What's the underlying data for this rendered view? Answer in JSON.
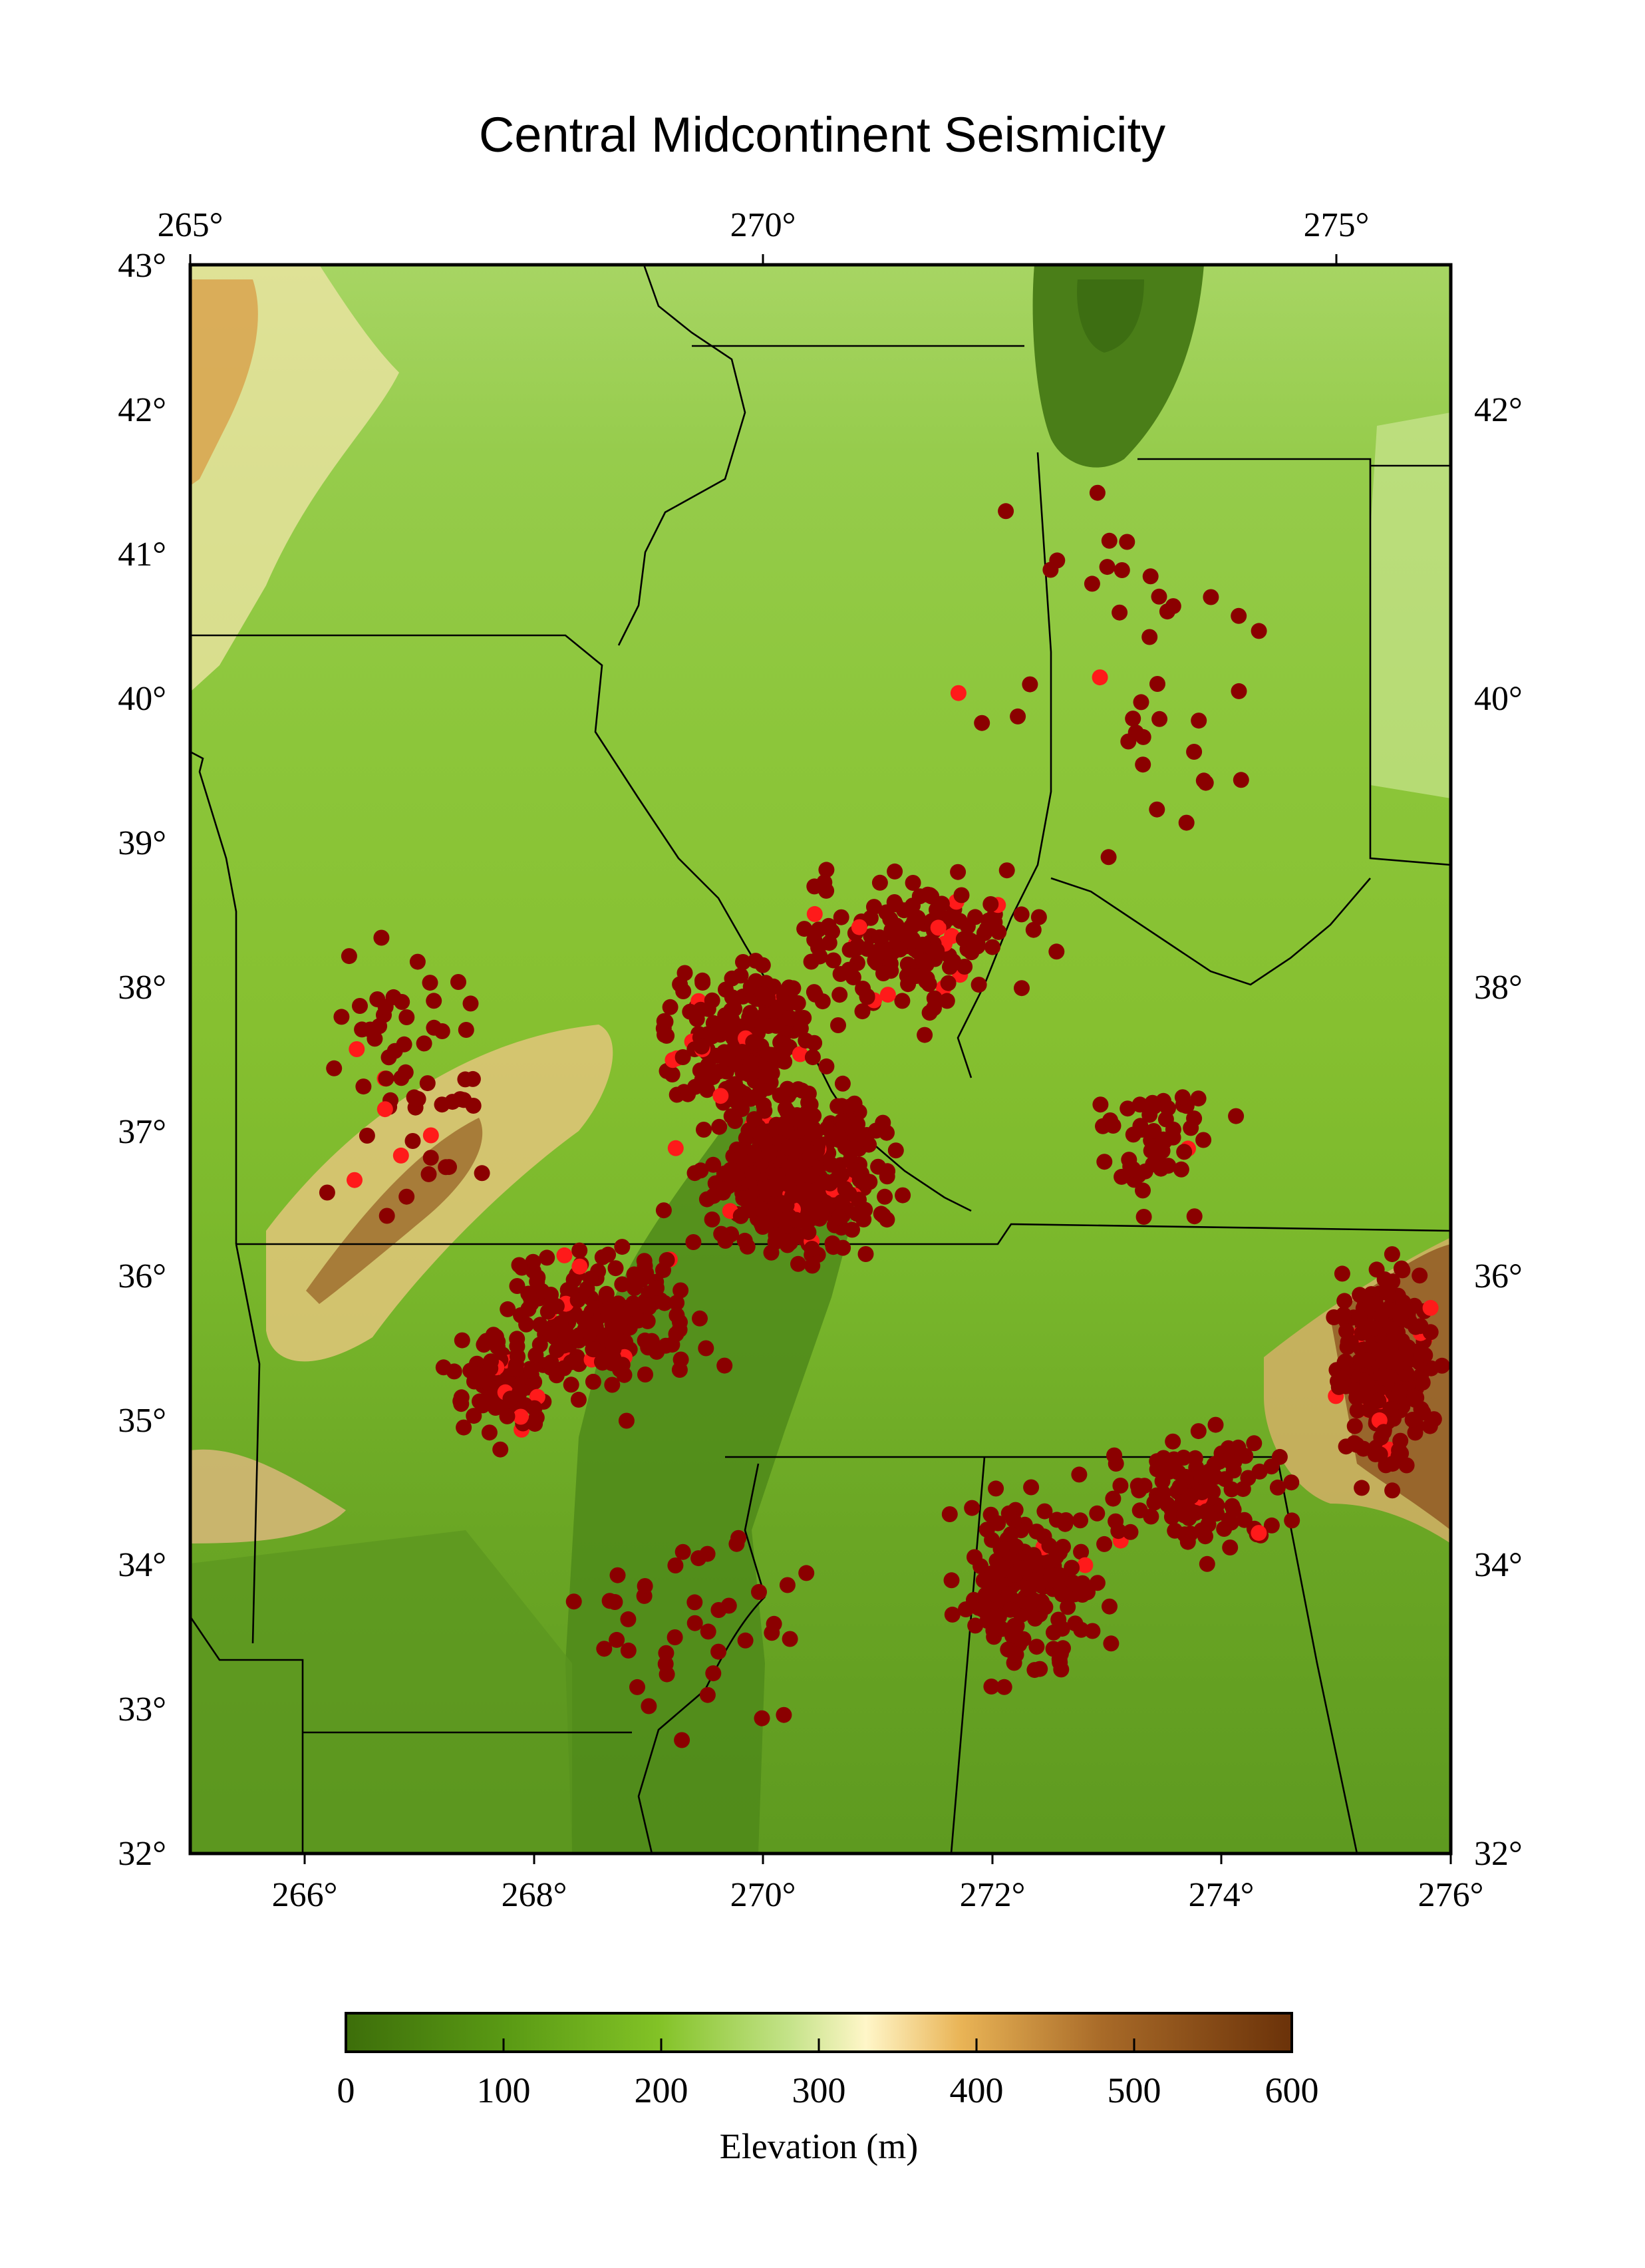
{
  "title": "Central Midcontinent Seismicity",
  "map": {
    "top_axis_labels": [
      "265°",
      "270°",
      "275°"
    ],
    "bottom_axis_labels": [
      "266°",
      "268°",
      "270°",
      "272°",
      "274°",
      "276°"
    ],
    "left_axis_labels": [
      "43°",
      "42°",
      "41°",
      "40°",
      "39°",
      "38°",
      "37°",
      "36°",
      "35°",
      "34°",
      "33°",
      "32°"
    ],
    "right_axis_labels": [
      "42°",
      "40°",
      "38°",
      "36°",
      "34°",
      "32°"
    ],
    "extent": {
      "lon_min": 265,
      "lon_max": 276,
      "lat_min": 32,
      "lat_max": 43
    },
    "event_color_dark": "#8b0000",
    "event_color_bright": "#ff1a1a"
  },
  "colorbar": {
    "label": "Elevation (m)",
    "tick_labels": [
      "0",
      "100",
      "200",
      "300",
      "400",
      "500",
      "600"
    ],
    "range": [
      0,
      600
    ],
    "colors": [
      "#3d6e0a",
      "#5a9a14",
      "#82c226",
      "#c5e38a",
      "#fff6c8",
      "#e9b456",
      "#a86a28",
      "#6b3209"
    ]
  }
}
